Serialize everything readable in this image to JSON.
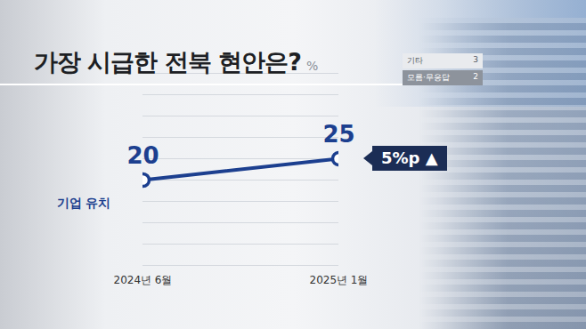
{
  "chart_data": {
    "type": "line",
    "title": "가장 시급한 전북 현안은?",
    "ylabel": "%",
    "categories": [
      "2024년 6월",
      "2025년 1월"
    ],
    "series": [
      {
        "name": "기업 유치",
        "color": "#1c3f8f",
        "values": [
          20,
          25
        ],
        "marker": "circle"
      }
    ],
    "ylim": [
      0,
      45
    ],
    "yticks": [
      0,
      5,
      10,
      15,
      20,
      25,
      30,
      35,
      40,
      45
    ],
    "grid": true,
    "tick_labels": "x",
    "data_labels": true,
    "annotations": [
      "5%p ▲"
    ],
    "other_answers": [
      {
        "name": "기타",
        "value": 3
      },
      {
        "name": "모름·무응답",
        "value": 2
      }
    ]
  }
}
